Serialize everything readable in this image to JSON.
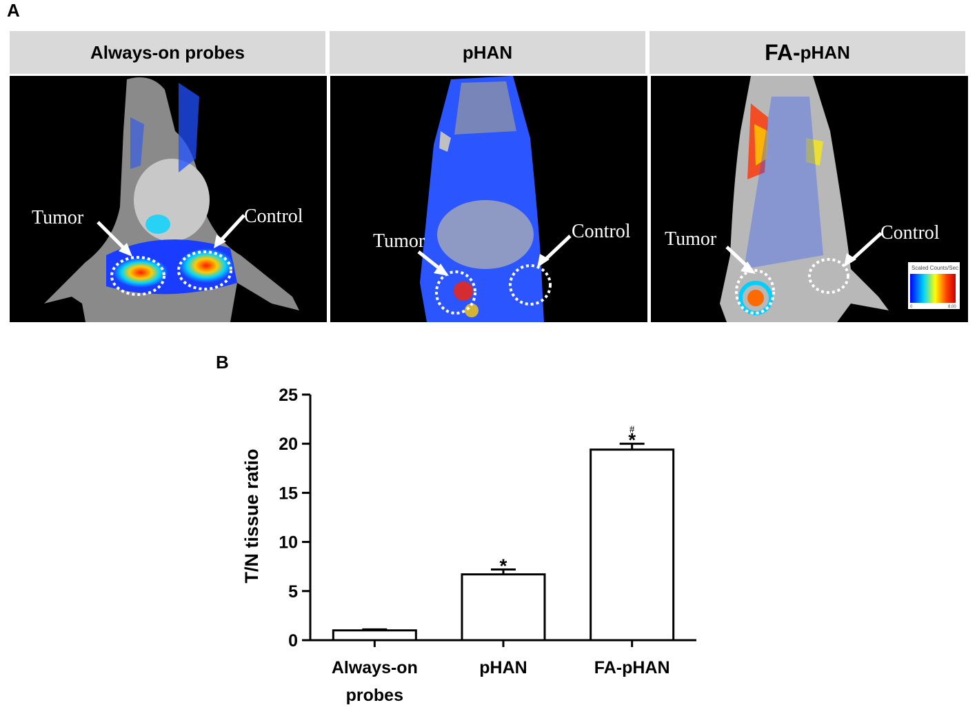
{
  "panel_labels": {
    "a": "A",
    "b": "B"
  },
  "images": [
    {
      "title": "Always-on probes",
      "tumor_label": "Tumor",
      "control_label": "Control"
    },
    {
      "title": "pHAN",
      "tumor_label": "Tumor",
      "control_label": "Control"
    },
    {
      "title_prefix": "FA-",
      "title_suffix": "pHAN",
      "tumor_label": "Tumor",
      "control_label": "Control",
      "scale_title": "Scaled Counts/Sec",
      "scale_min": "0",
      "scale_max": "8.00"
    }
  ],
  "colors": {
    "header_bg": "#d9d9d9",
    "background": "#000000",
    "bar_fill": "#ffffff",
    "bar_stroke": "#000000"
  },
  "chart_data": {
    "type": "bar",
    "categories": [
      "Always-on probes",
      "pHAN",
      "FA-pHAN"
    ],
    "category_lines": [
      [
        "Always-on",
        "probes"
      ],
      [
        "pHAN"
      ],
      [
        "FA-pHAN"
      ]
    ],
    "values": [
      1.0,
      6.7,
      19.4
    ],
    "errors": [
      0.1,
      0.5,
      0.6
    ],
    "significance": [
      [],
      [
        "*"
      ],
      [
        "*",
        "#"
      ]
    ],
    "ylabel": "T/N tissue ratio",
    "xlabel": "",
    "ylim": [
      0,
      25
    ],
    "yticks": [
      0,
      5,
      10,
      15,
      20,
      25
    ],
    "grid": false
  }
}
